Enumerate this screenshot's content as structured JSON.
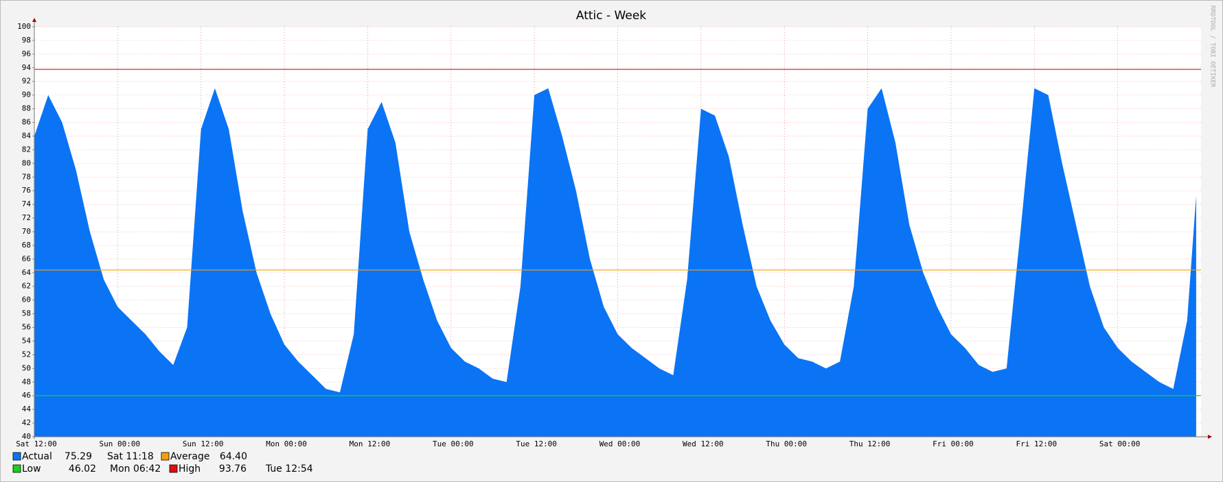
{
  "chart_data": {
    "type": "area",
    "title": "Attic - Week",
    "watermark": "RRDTOOL / TOBI OETIKER",
    "x": [
      0,
      2,
      4,
      6,
      8,
      10,
      12,
      14,
      16,
      18,
      20,
      22,
      24,
      26,
      28,
      30,
      32,
      34,
      36,
      38,
      40,
      42,
      44,
      46,
      48,
      50,
      52,
      54,
      56,
      58,
      60,
      62,
      64,
      66,
      68,
      70,
      72,
      74,
      76,
      78,
      80,
      82,
      84,
      86,
      88,
      90,
      92,
      94,
      96,
      98,
      100,
      102,
      104,
      106,
      108,
      110,
      112,
      114,
      116,
      118,
      120,
      122,
      124,
      126,
      128,
      130,
      132,
      134,
      136,
      138,
      140,
      142,
      144,
      146,
      148,
      150,
      152,
      154,
      156,
      158,
      160,
      162,
      164,
      166,
      167.3
    ],
    "series": [
      {
        "name": "Actual",
        "color": "#0a74f5",
        "current": 75.29,
        "current_time": "Sat 11:18",
        "values": [
          84,
          90,
          86,
          79,
          70,
          63,
          59,
          57,
          55,
          52.5,
          50.5,
          56,
          85,
          91,
          85,
          73,
          64,
          58,
          53.5,
          51,
          49,
          47,
          46.5,
          55,
          85,
          89,
          83,
          70,
          63,
          57,
          53,
          51,
          50,
          48.5,
          48,
          62,
          90,
          91,
          84,
          76,
          66,
          59,
          55,
          53,
          51.5,
          50,
          49,
          63,
          88,
          87,
          81,
          71,
          62,
          57,
          53.5,
          51.5,
          51,
          50,
          51,
          62,
          88,
          91,
          83,
          71,
          64,
          59,
          55,
          53,
          50.5,
          49.5,
          50,
          70,
          91,
          90,
          80,
          71,
          62,
          56,
          53,
          51,
          49.5,
          48,
          47,
          57,
          75.29
        ]
      }
    ],
    "reference_lines": [
      {
        "name": "Average",
        "color": "#f5a00a",
        "value": 64.4,
        "value_label": "64.40"
      },
      {
        "name": "Low",
        "color": "#1ad01a",
        "value": 46.02,
        "time": "Mon 06:42"
      },
      {
        "name": "High",
        "color": "#e01010",
        "value": 93.76,
        "time": "Tue 12:54"
      }
    ],
    "xlim": [
      0,
      168
    ],
    "xticks": [
      {
        "value": 0,
        "label": "Sat 12:00"
      },
      {
        "value": 12,
        "label": "Sun 00:00"
      },
      {
        "value": 24,
        "label": "Sun 12:00"
      },
      {
        "value": 36,
        "label": "Mon 00:00"
      },
      {
        "value": 48,
        "label": "Mon 12:00"
      },
      {
        "value": 60,
        "label": "Tue 00:00"
      },
      {
        "value": 72,
        "label": "Tue 12:00"
      },
      {
        "value": 84,
        "label": "Wed 00:00"
      },
      {
        "value": 96,
        "label": "Wed 12:00"
      },
      {
        "value": 108,
        "label": "Thu 00:00"
      },
      {
        "value": 120,
        "label": "Thu 12:00"
      },
      {
        "value": 132,
        "label": "Fri 00:00"
      },
      {
        "value": 144,
        "label": "Fri 12:00"
      },
      {
        "value": 156,
        "label": "Sat 00:00"
      }
    ],
    "ylim": [
      40,
      100
    ],
    "yticks": [
      40,
      42,
      44,
      46,
      48,
      50,
      52,
      54,
      56,
      58,
      60,
      62,
      64,
      66,
      68,
      70,
      72,
      74,
      76,
      78,
      80,
      82,
      84,
      86,
      88,
      90,
      92,
      94,
      96,
      98,
      100
    ],
    "grid": true
  }
}
